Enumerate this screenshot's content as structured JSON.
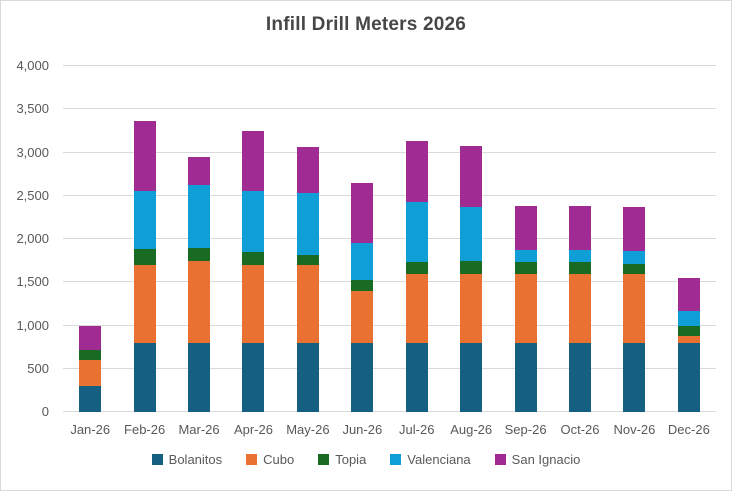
{
  "chart_data": {
    "type": "bar",
    "stacked": true,
    "title": "Infill Drill Meters 2026",
    "xlabel": "",
    "ylabel": "",
    "ylim": [
      0,
      4000
    ],
    "ytick_step": 500,
    "ytick_labels": [
      "0",
      "500",
      "1,000",
      "1,500",
      "2,000",
      "2,500",
      "3,000",
      "3,500",
      "4,000"
    ],
    "grid": true,
    "legend_position": "bottom",
    "categories": [
      "Jan-26",
      "Feb-26",
      "Mar-26",
      "Apr-26",
      "May-26",
      "Jun-26",
      "Jul-26",
      "Aug-26",
      "Sep-26",
      "Oct-26",
      "Nov-26",
      "Dec-26"
    ],
    "series": [
      {
        "name": "Bolanitos",
        "color": "#156082",
        "values": [
          300,
          800,
          800,
          800,
          800,
          800,
          800,
          800,
          800,
          800,
          800,
          800
        ]
      },
      {
        "name": "Cubo",
        "color": "#E97132",
        "values": [
          300,
          900,
          950,
          900,
          900,
          600,
          800,
          800,
          800,
          800,
          790,
          80
        ]
      },
      {
        "name": "Topia",
        "color": "#196B24",
        "values": [
          120,
          180,
          150,
          150,
          120,
          130,
          130,
          150,
          130,
          130,
          120,
          120
        ]
      },
      {
        "name": "Valenciana",
        "color": "#0F9ED5",
        "values": [
          0,
          680,
          730,
          700,
          710,
          420,
          700,
          620,
          140,
          145,
          150,
          170
        ]
      },
      {
        "name": "San Ignacio",
        "color": "#A02B93",
        "values": [
          280,
          800,
          320,
          700,
          530,
          700,
          700,
          710,
          510,
          505,
          510,
          380
        ]
      }
    ],
    "totals": [
      1000,
      3360,
      2950,
      3250,
      3060,
      2650,
      3130,
      3080,
      2380,
      2380,
      2370,
      1550
    ],
    "colors": {
      "gridline": "#D9D9D9",
      "axis_text": "#595959",
      "title_text": "#474747",
      "frame_border": "#D9D9D9",
      "background": "#FFFFFF"
    }
  }
}
